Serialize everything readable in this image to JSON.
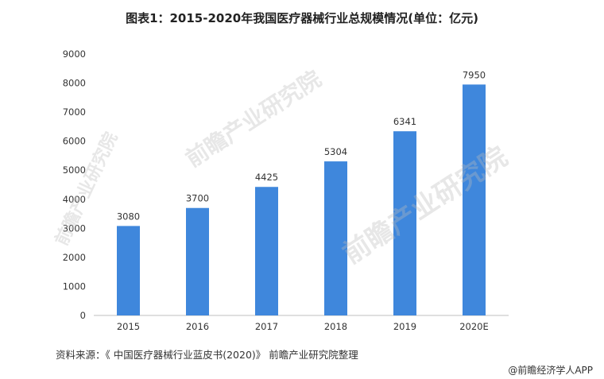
{
  "title": "图表1：2015-2020年我国医疗器械行业总规模情况(单位：亿元)",
  "source_note": "资料来源：《 中国医疗器械行业蓝皮书(2020)》 前瞻产业研究院整理",
  "credit": "@前瞻经济学人APP",
  "watermark_text": "前瞻产业研究院",
  "colors": {
    "bar": "#3f87dc",
    "axis": "#bfbfbf",
    "text": "#333333"
  },
  "chart_data": {
    "type": "bar",
    "categories": [
      "2015",
      "2016",
      "2017",
      "2018",
      "2019",
      "2020E"
    ],
    "values": [
      3080,
      3700,
      4425,
      5304,
      6341,
      7950
    ],
    "yticks": [
      0,
      1000,
      2000,
      3000,
      4000,
      5000,
      6000,
      7000,
      8000,
      9000
    ],
    "ylim": [
      0,
      9000
    ],
    "xlabel": "",
    "ylabel": "",
    "grid": false,
    "legend": "none",
    "data_labels": true
  }
}
